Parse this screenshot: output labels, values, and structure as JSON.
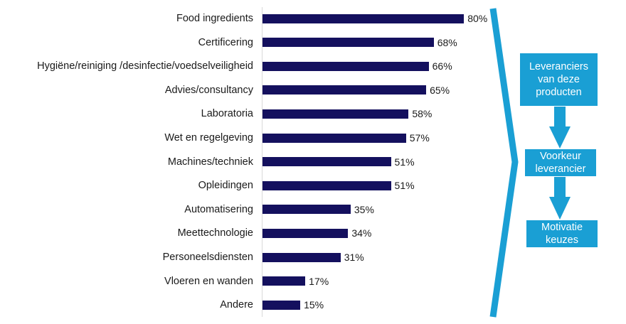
{
  "chart_data": {
    "type": "bar",
    "orientation": "horizontal",
    "title": "",
    "xlabel": "",
    "ylabel": "",
    "xlim": [
      0,
      100
    ],
    "grid": false,
    "legend": null,
    "categories": [
      "Food ingredients",
      "Certificering",
      "Hygiëne/reiniging /desinfectie/voedselveiligheid",
      "Advies/consultancy",
      "Laboratoria",
      "Wet en regelgeving",
      "Machines/techniek",
      "Opleidingen",
      "Automatisering",
      "Meettechnologie",
      "Personeelsdiensten",
      "Vloeren en wanden",
      "Andere"
    ],
    "values": [
      80,
      68,
      66,
      65,
      58,
      57,
      51,
      51,
      35,
      34,
      31,
      17,
      15
    ],
    "value_labels": [
      "80%",
      "68%",
      "66%",
      "65%",
      "58%",
      "57%",
      "51%",
      "51%",
      "35%",
      "34%",
      "31%",
      "17%",
      "15%"
    ],
    "bar_color": "#14105e"
  },
  "flow": {
    "color": "#1a9fd4",
    "steps": [
      {
        "lines": [
          "Leveranciers",
          "van deze",
          "producten"
        ]
      },
      {
        "lines": [
          "Voorkeur",
          "leverancier"
        ]
      },
      {
        "lines": [
          "Motivatie",
          "keuzes"
        ]
      }
    ]
  }
}
